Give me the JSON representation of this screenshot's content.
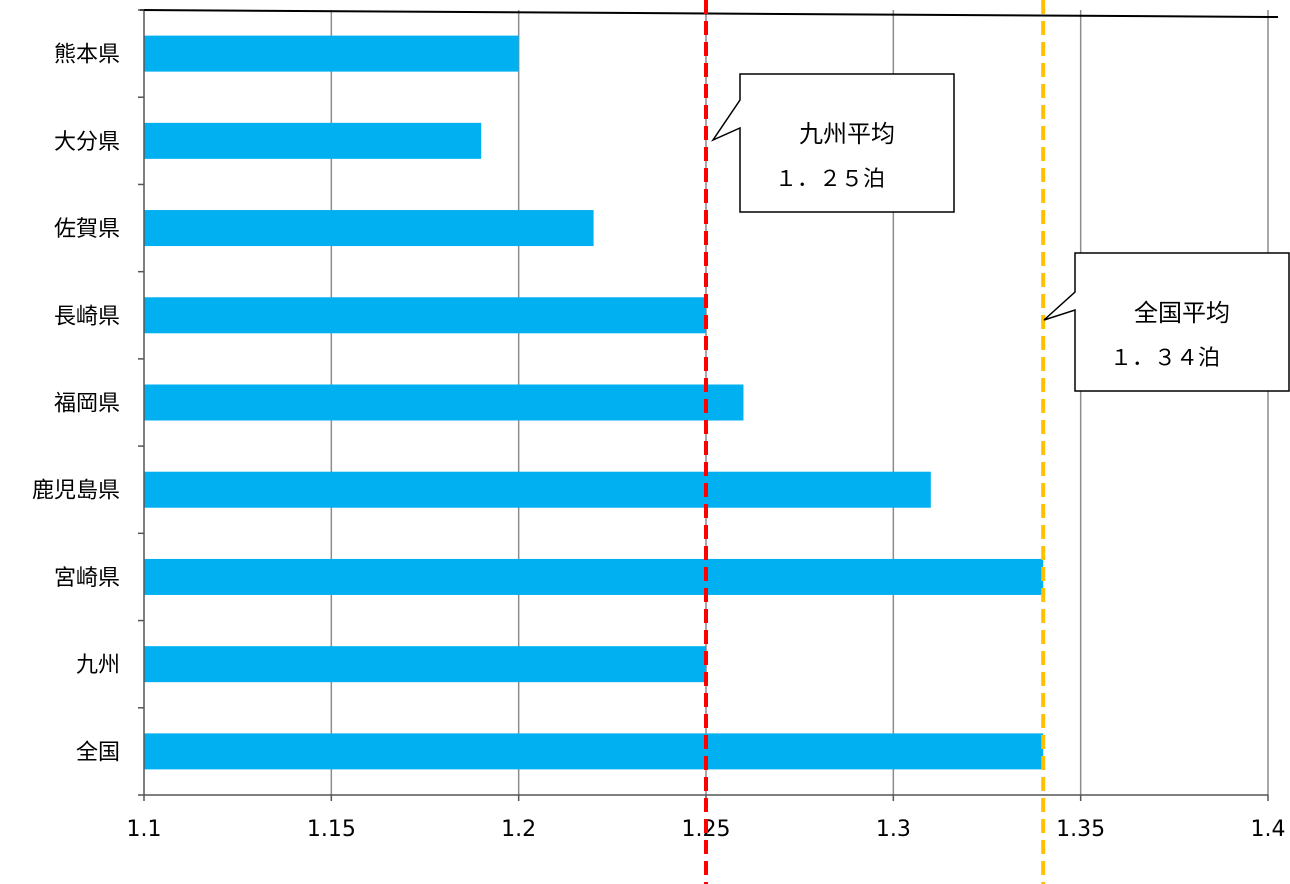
{
  "chart_data": {
    "type": "bar",
    "orientation": "horizontal",
    "categories": [
      "熊本県",
      "大分県",
      "佐賀県",
      "長崎県",
      "福岡県",
      "鹿児島県",
      "宮崎県",
      "九州",
      "全国"
    ],
    "values": [
      1.2,
      1.19,
      1.22,
      1.25,
      1.26,
      1.31,
      1.34,
      1.25,
      1.34
    ],
    "xlim": [
      1.1,
      1.4
    ],
    "xticks": [
      "1.1",
      "1.15",
      "1.2",
      "1.25",
      "1.3",
      "1.35",
      "1.4"
    ],
    "xtick_values": [
      1.1,
      1.15,
      1.2,
      1.25,
      1.3,
      1.35,
      1.4
    ],
    "grid": "vertical",
    "bar_color": "#00b0f0",
    "reference_lines": [
      {
        "value": 1.25,
        "color": "#ff0000",
        "style": "dashed"
      },
      {
        "value": 1.34,
        "color": "#ffc000",
        "style": "dashed"
      }
    ],
    "annotations": [
      {
        "title": "九州平均",
        "subtitle": "１．２５泊",
        "target": 1.25
      },
      {
        "title": "全国平均",
        "subtitle": "１．３４泊",
        "target": 1.34
      }
    ]
  }
}
